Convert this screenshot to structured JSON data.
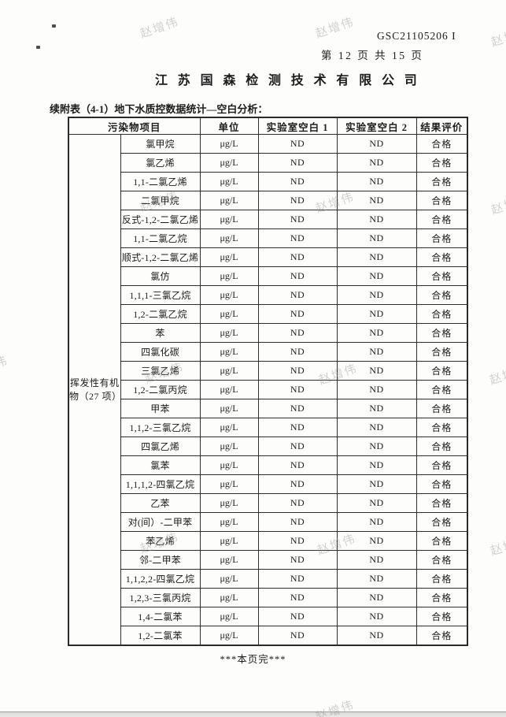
{
  "page": {
    "doc_code": "GSC21105206 I",
    "page_info": "第 12 页 共 15 页",
    "company_title": "江苏国森检测技术有限公司",
    "section_title": "续附表（4-1）地下水质控数据统计—空白分析：",
    "footer_note": "***本页完***",
    "watermark_text": "赵增伟"
  },
  "table": {
    "col_headers": {
      "pollutant": "污染物项目",
      "unit": "单位",
      "lab_blank_1": "实验室空白 1",
      "lab_blank_2": "实验室空白 2",
      "result": "结果评价"
    },
    "category_label": "挥发性有机物（27 项）",
    "rows": [
      {
        "name": "氯甲烷",
        "unit": "μg/L",
        "blank1": "ND",
        "blank2": "ND",
        "result": "合格"
      },
      {
        "name": "氯乙烯",
        "unit": "μg/L",
        "blank1": "ND",
        "blank2": "ND",
        "result": "合格"
      },
      {
        "name": "1,1-二氯乙烯",
        "unit": "μg/L",
        "blank1": "ND",
        "blank2": "ND",
        "result": "合格"
      },
      {
        "name": "二氯甲烷",
        "unit": "μg/L",
        "blank1": "ND",
        "blank2": "ND",
        "result": "合格"
      },
      {
        "name": "反式-1,2-二氯乙烯",
        "unit": "μg/L",
        "blank1": "ND",
        "blank2": "ND",
        "result": "合格"
      },
      {
        "name": "1,1-二氯乙烷",
        "unit": "μg/L",
        "blank1": "ND",
        "blank2": "ND",
        "result": "合格"
      },
      {
        "name": "顺式-1,2-二氯乙烯",
        "unit": "μg/L",
        "blank1": "ND",
        "blank2": "ND",
        "result": "合格"
      },
      {
        "name": "氯仿",
        "unit": "μg/L",
        "blank1": "ND",
        "blank2": "ND",
        "result": "合格"
      },
      {
        "name": "1,1,1-三氯乙烷",
        "unit": "μg/L",
        "blank1": "ND",
        "blank2": "ND",
        "result": "合格"
      },
      {
        "name": "1,2-二氯乙烷",
        "unit": "μg/L",
        "blank1": "ND",
        "blank2": "ND",
        "result": "合格"
      },
      {
        "name": "苯",
        "unit": "μg/L",
        "blank1": "ND",
        "blank2": "ND",
        "result": "合格"
      },
      {
        "name": "四氯化碳",
        "unit": "μg/L",
        "blank1": "ND",
        "blank2": "ND",
        "result": "合格"
      },
      {
        "name": "三氯乙烯",
        "unit": "μg/L",
        "blank1": "ND",
        "blank2": "ND",
        "result": "合格"
      },
      {
        "name": "1,2-二氯丙烷",
        "unit": "μg/L",
        "blank1": "ND",
        "blank2": "ND",
        "result": "合格"
      },
      {
        "name": "甲苯",
        "unit": "μg/L",
        "blank1": "ND",
        "blank2": "ND",
        "result": "合格"
      },
      {
        "name": "1,1,2-三氯乙烷",
        "unit": "μg/L",
        "blank1": "ND",
        "blank2": "ND",
        "result": "合格"
      },
      {
        "name": "四氯乙烯",
        "unit": "μg/L",
        "blank1": "ND",
        "blank2": "ND",
        "result": "合格"
      },
      {
        "name": "氯苯",
        "unit": "μg/L",
        "blank1": "ND",
        "blank2": "ND",
        "result": "合格"
      },
      {
        "name": "1,1,1,2-四氯乙烷",
        "unit": "μg/L",
        "blank1": "ND",
        "blank2": "ND",
        "result": "合格"
      },
      {
        "name": "乙苯",
        "unit": "μg/L",
        "blank1": "ND",
        "blank2": "ND",
        "result": "合格"
      },
      {
        "name": "对(间）-二甲苯",
        "unit": "μg/L",
        "blank1": "ND",
        "blank2": "ND",
        "result": "合格"
      },
      {
        "name": "苯乙烯",
        "unit": "μg/L",
        "blank1": "ND",
        "blank2": "ND",
        "result": "合格"
      },
      {
        "name": "邻-二甲苯",
        "unit": "μg/L",
        "blank1": "ND",
        "blank2": "ND",
        "result": "合格"
      },
      {
        "name": "1,1,2,2-四氯乙烷",
        "unit": "μg/L",
        "blank1": "ND",
        "blank2": "ND",
        "result": "合格"
      },
      {
        "name": "1,2,3-三氯丙烷",
        "unit": "μg/L",
        "blank1": "ND",
        "blank2": "ND",
        "result": "合格"
      },
      {
        "name": "1,4-二氯苯",
        "unit": "μg/L",
        "blank1": "ND",
        "blank2": "ND",
        "result": "合格"
      },
      {
        "name": "1,2-二氯苯",
        "unit": "μg/L",
        "blank1": "ND",
        "blank2": "ND",
        "result": "合格"
      }
    ]
  }
}
